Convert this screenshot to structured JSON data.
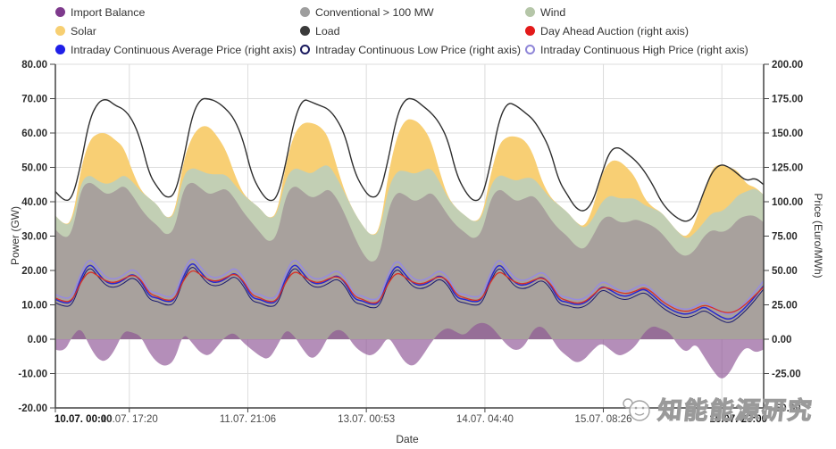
{
  "legend": {
    "items": [
      {
        "key": "import-balance",
        "label": "Import Balance",
        "color": "#7e3a8c",
        "marker": "filled"
      },
      {
        "key": "conventional",
        "label": "Conventional > 100 MW",
        "color": "#9e9e9e",
        "marker": "filled"
      },
      {
        "key": "wind",
        "label": "Wind",
        "color": "#b5c6a8",
        "marker": "filled"
      },
      {
        "key": "solar",
        "label": "Solar",
        "color": "#f7cf72",
        "marker": "filled"
      },
      {
        "key": "load",
        "label": "Load",
        "color": "#3a3a3a",
        "marker": "filled"
      },
      {
        "key": "day-ahead-auction",
        "label": "Day Ahead Auction (right axis)",
        "color": "#e31a1a",
        "marker": "filled"
      },
      {
        "key": "intraday-average-price",
        "label": "Intraday Continuous Average Price (right axis)",
        "color": "#1f1fe8",
        "marker": "filled"
      },
      {
        "key": "intraday-low-price",
        "label": "Intraday Continuous Low Price (right axis)",
        "color": "#1a1a5e",
        "marker": "ring"
      },
      {
        "key": "intraday-high-price",
        "label": "Intraday Continuous High Price (right axis)",
        "color": "#8f86d8",
        "marker": "ring"
      }
    ]
  },
  "axes": {
    "left": {
      "title": "Power (GW)",
      "ticks": [
        "80.00",
        "70.00",
        "60.00",
        "50.00",
        "40.00",
        "30.00",
        "20.00",
        "10.00",
        "0.00",
        "-10.00",
        "-20.00"
      ],
      "tick_values": [
        80,
        70,
        60,
        50,
        40,
        30,
        20,
        10,
        0,
        -10,
        -20
      ]
    },
    "right": {
      "title": "Price (Euro/MWh)",
      "ticks": [
        "200.00",
        "175.00",
        "150.00",
        "125.00",
        "100.00",
        "75.00",
        "50.00",
        "25.00",
        "0.00",
        "-25.00",
        "-50.00"
      ],
      "tick_values": [
        200,
        175,
        150,
        125,
        100,
        75,
        50,
        25,
        0,
        -25,
        -50
      ]
    },
    "x": {
      "title": "Date",
      "ticks": [
        {
          "label": "10.07. 00:00",
          "hour": 0,
          "bold": true,
          "anchor": "start"
        },
        {
          "label": "10.07. 17:20",
          "hour": 17.33
        },
        {
          "label": "11.07. 21:06",
          "hour": 45.1
        },
        {
          "label": "13.07. 00:53",
          "hour": 72.88
        },
        {
          "label": "14.07. 04:40",
          "hour": 100.67
        },
        {
          "label": "15.07. 08:26",
          "hour": 128.43
        },
        {
          "label": "16.07. 23:00",
          "hour": 166,
          "bold": true,
          "anchor": "end"
        }
      ],
      "grid_hours": [
        17.33,
        45.1,
        72.88,
        100.67,
        128.43,
        156.2
      ]
    }
  },
  "watermark": {
    "text": "知能能源研究"
  },
  "chart_data": {
    "type": "combo_stacked_area_line",
    "x_unit": "hours from 10.07. 00:00, step 2h",
    "x_step": 2,
    "x_max": 166,
    "left_axis": {
      "min": -20,
      "max": 80,
      "label": "Power (GW)"
    },
    "right_axis": {
      "min": -50,
      "max": 200,
      "label": "Price (Euro/MWh)"
    },
    "grid": true,
    "legend_position": "top",
    "series": [
      {
        "key": "conventional",
        "name": "Conventional > 100 MW",
        "axis": "left",
        "type": "stacked_area",
        "color": "#a8a19d",
        "values": [
          32,
          29,
          31,
          44,
          46,
          44,
          42,
          43,
          45,
          42,
          38,
          35,
          33,
          30,
          32,
          44,
          46,
          44,
          42,
          43,
          44,
          41,
          37,
          34,
          31,
          28,
          30,
          42,
          45,
          43,
          41,
          42,
          44,
          41,
          36,
          30,
          25,
          22,
          24,
          38,
          43,
          42,
          40,
          41,
          43,
          40,
          36,
          33,
          31,
          29,
          31,
          41,
          44,
          42,
          40,
          41,
          42,
          39,
          35,
          32,
          30,
          27,
          26,
          30,
          35,
          36,
          34,
          34,
          35,
          34,
          33,
          31,
          28,
          25,
          24,
          26,
          30,
          32,
          31,
          32,
          35,
          36,
          36,
          34
        ]
      },
      {
        "key": "wind",
        "name": "Wind",
        "axis": "left",
        "type": "stacked_area",
        "color": "#c2cfb4",
        "values": [
          4,
          4,
          3,
          2,
          2,
          2,
          3,
          3,
          3,
          4,
          5,
          6,
          6,
          5,
          4,
          4,
          4,
          5,
          6,
          5,
          4,
          4,
          5,
          6,
          7,
          7,
          6,
          5,
          5,
          6,
          7,
          8,
          7,
          6,
          6,
          7,
          8,
          8,
          7,
          6,
          6,
          7,
          8,
          8,
          7,
          6,
          5,
          5,
          5,
          5,
          4,
          4,
          4,
          5,
          6,
          6,
          5,
          5,
          6,
          7,
          7,
          7,
          6,
          5,
          5,
          6,
          7,
          7,
          6,
          5,
          5,
          6,
          6,
          6,
          5,
          5,
          4,
          5,
          6,
          7,
          7,
          7,
          8,
          8
        ]
      },
      {
        "key": "solar",
        "name": "Solar",
        "axis": "left",
        "type": "stacked_area",
        "color": "#f8cf74",
        "values": [
          0,
          0,
          0.5,
          4,
          10,
          14,
          15,
          12,
          8,
          3,
          0.3,
          0,
          0,
          0,
          0.5,
          4,
          9,
          13,
          14,
          11,
          7,
          3,
          0.3,
          0,
          0,
          0,
          0.5,
          4,
          10,
          14,
          15,
          12,
          8,
          3,
          0.3,
          0,
          0,
          0,
          0.5,
          4,
          10,
          15,
          16,
          13,
          8,
          3,
          0.3,
          0,
          0,
          0,
          0.5,
          3,
          9,
          12,
          13,
          11,
          7,
          2,
          0.3,
          0,
          0,
          0,
          0.5,
          3,
          8,
          10,
          11,
          9,
          6,
          2,
          0.3,
          0,
          0,
          0,
          0.5,
          3,
          9,
          13,
          14,
          11,
          7,
          2,
          0.3,
          0
        ]
      },
      {
        "key": "import-balance",
        "name": "Import Balance",
        "axis": "left",
        "type": "area",
        "color": "#8d5494",
        "opacity": 0.66,
        "values": [
          -3,
          -4,
          1,
          3.5,
          -2,
          -6,
          -6.5,
          -3,
          2.5,
          2,
          1,
          -4,
          -7,
          -8,
          -6,
          2,
          -1,
          -4,
          -5,
          -2,
          1,
          2,
          -1,
          -3,
          -5,
          -6,
          -2,
          3,
          1,
          -3,
          -6,
          -4,
          1,
          3,
          2,
          -2,
          -4,
          -5,
          -3,
          1,
          -3,
          -7,
          -8,
          -5,
          -1,
          2,
          3.5,
          2,
          1,
          4,
          5,
          4,
          1,
          -2,
          -3.5,
          -2,
          3,
          4,
          1,
          -3,
          -5,
          -7,
          -6,
          -3,
          -1,
          -3,
          -5,
          -4,
          -2,
          2,
          4,
          3,
          2,
          -2,
          -4,
          -1,
          -5,
          -9,
          -12,
          -10,
          -5,
          -2,
          -4,
          -3
        ]
      },
      {
        "key": "intraday-high-price",
        "name": "Intraday Continuous High Price",
        "axis": "right",
        "type": "line",
        "color": "#978cdd",
        "width": 1.6,
        "values": [
          32.5,
          29.5,
          30.5,
          48.5,
          59.5,
          51.5,
          44.5,
          43.5,
          46.5,
          51.5,
          46.5,
          34.5,
          33.5,
          30.5,
          31.5,
          49.5,
          60.5,
          52.5,
          45.5,
          44.5,
          47.5,
          52.5,
          45.5,
          33.5,
          32.5,
          29.5,
          30.5,
          48.5,
          59.5,
          51.5,
          44.5,
          43.5,
          46.5,
          50.5,
          44.5,
          32.5,
          31.5,
          28.5,
          29.5,
          47.5,
          58.5,
          50.5,
          43.5,
          42.5,
          45.5,
          50.5,
          45.5,
          33.5,
          32.5,
          30.5,
          31.5,
          48.5,
          59.5,
          50.5,
          43.5,
          42.5,
          45.5,
          49.5,
          43.5,
          31.5,
          30.5,
          28.5,
          29.5,
          34.5,
          42.5,
          39.5,
          35.5,
          34.5,
          37.5,
          40.5,
          35.5,
          29.5,
          25.5,
          22.5,
          21.5,
          23.5,
          27.5,
          23.5,
          19.5,
          17.5,
          21.5,
          27.5,
          34.5,
          42.5
        ]
      },
      {
        "key": "intraday-low-price",
        "name": "Intraday Continuous Low Price",
        "axis": "right",
        "type": "line",
        "color": "#1b1b6f",
        "width": 1,
        "values": [
          26.5,
          23.5,
          24.5,
          42.5,
          53.5,
          45.5,
          38.5,
          37.5,
          40.5,
          45.5,
          40.5,
          28.5,
          27.5,
          24.5,
          25.5,
          43.5,
          54.5,
          46.5,
          39.5,
          38.5,
          41.5,
          46.5,
          39.5,
          27.5,
          26.5,
          23.5,
          24.5,
          42.5,
          53.5,
          45.5,
          38.5,
          37.5,
          40.5,
          44.5,
          38.5,
          26.5,
          25.5,
          22.5,
          23.5,
          41.5,
          52.5,
          44.5,
          37.5,
          36.5,
          39.5,
          44.5,
          39.5,
          27.5,
          26.5,
          24.5,
          25.5,
          42.5,
          53.5,
          44.5,
          37.5,
          36.5,
          39.5,
          43.5,
          37.5,
          25.5,
          24.5,
          22.5,
          23.5,
          28.5,
          36.5,
          33.5,
          29.5,
          28.5,
          31.5,
          34.5,
          29.5,
          23.5,
          19.5,
          16.5,
          15.5,
          17.5,
          21.5,
          17.5,
          13.5,
          11.5,
          15.5,
          21.5,
          28.5,
          36.5
        ]
      },
      {
        "key": "intraday-average-price",
        "name": "Intraday Continuous Average Price",
        "axis": "right",
        "type": "line",
        "color": "#2929cf",
        "width": 1.5,
        "values": [
          29,
          26,
          27,
          45,
          56,
          48,
          41,
          40,
          43,
          48,
          43,
          31,
          30,
          27,
          28,
          46,
          57,
          49,
          42,
          41,
          44,
          49,
          42,
          30,
          29,
          26,
          27,
          45,
          56,
          48,
          41,
          40,
          43,
          47,
          41,
          29,
          28,
          25,
          26,
          44,
          55,
          47,
          40,
          39,
          42,
          47,
          42,
          30,
          29,
          27,
          28,
          45,
          56,
          47,
          40,
          39,
          42,
          46,
          40,
          28,
          27,
          25,
          26,
          31,
          39,
          36,
          32,
          31,
          34,
          37,
          32,
          26,
          22,
          19,
          18,
          20,
          24,
          20,
          16,
          14,
          18,
          24,
          31,
          39
        ]
      },
      {
        "key": "day-ahead-auction",
        "name": "Day Ahead Auction",
        "axis": "right",
        "type": "line",
        "color": "#d93025",
        "width": 1.3,
        "values": [
          30,
          27,
          28,
          42,
          50,
          46,
          42,
          41,
          44,
          47,
          44,
          33,
          31,
          28,
          29,
          43,
          51,
          47,
          43,
          42,
          45,
          48,
          43,
          32,
          30,
          27,
          28,
          42,
          50,
          46,
          42,
          41,
          44,
          46,
          42,
          31,
          29,
          26,
          27,
          41,
          49,
          45,
          41,
          40,
          43,
          46,
          43,
          32,
          30,
          28,
          29,
          42,
          50,
          45,
          41,
          40,
          43,
          45,
          41,
          30,
          28,
          26,
          27,
          32,
          38,
          37,
          34,
          33,
          35,
          38,
          34,
          28,
          24,
          21,
          20,
          22,
          25,
          23,
          20,
          19,
          21,
          26,
          32,
          38
        ]
      },
      {
        "key": "load",
        "name": "Load",
        "axis": "left",
        "type": "line",
        "color": "#2f2f2f",
        "width": 1.4,
        "values": [
          43,
          40,
          41,
          51,
          64,
          69,
          70,
          68,
          67,
          64,
          58,
          48,
          44,
          41,
          42,
          52,
          65,
          70,
          70,
          69,
          67,
          64,
          58,
          48,
          43,
          40,
          41,
          51,
          64,
          70,
          69,
          68,
          67,
          64,
          59,
          49,
          44,
          41,
          42,
          52,
          65,
          70,
          70,
          68,
          66,
          63,
          58,
          48,
          43,
          40,
          41,
          51,
          64,
          69,
          68,
          66,
          64,
          60,
          55,
          46,
          42,
          38,
          37,
          40,
          48,
          55,
          56,
          54,
          52,
          49,
          45,
          40,
          37,
          35,
          34,
          36,
          43,
          49,
          51,
          50,
          48,
          46,
          47,
          45
        ]
      }
    ]
  }
}
